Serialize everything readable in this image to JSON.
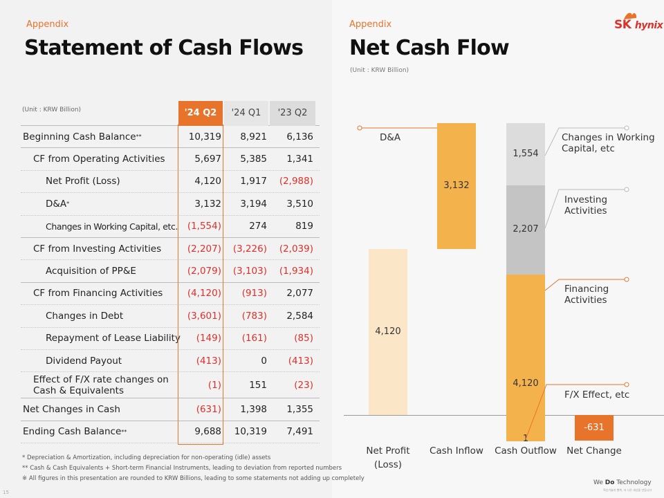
{
  "left": {
    "section": "Appendix",
    "title": "Statement of Cash Flows",
    "table": {
      "unit": "(Unit : KRW Billion)",
      "headers": [
        "'24 Q2",
        "'24 Q1",
        "'23 Q2"
      ],
      "rows": [
        {
          "label": "Beginning Cash Balance",
          "sup": "**",
          "values": [
            "10,319",
            "8,921",
            "6,136"
          ]
        },
        {
          "label": "CF from Operating Activities",
          "values": [
            "5,697",
            "5,385",
            "1,341"
          ]
        },
        {
          "label": "Net Profit (Loss)",
          "values": [
            "4,120",
            "1,917",
            "(2,988)"
          ]
        },
        {
          "label": "D&A",
          "sup": "*",
          "values": [
            "3,132",
            "3,194",
            "3,510"
          ]
        },
        {
          "label": "Changes in Working Capital, etc.",
          "values": [
            "(1,554)",
            "274",
            "819"
          ]
        },
        {
          "label": "CF from Investing Activities",
          "values": [
            "(2,207)",
            "(3,226)",
            "(2,039)"
          ]
        },
        {
          "label": "Acquisition of PP&E",
          "values": [
            "(2,079)",
            "(3,103)",
            "(1,934)"
          ]
        },
        {
          "label": "CF from Financing Activities",
          "values": [
            "(4,120)",
            "(913)",
            "2,077"
          ]
        },
        {
          "label": "Changes in Debt",
          "values": [
            "(3,601)",
            "(783)",
            "2,584"
          ]
        },
        {
          "label": "Repayment of Lease Liability",
          "values": [
            "(149)",
            "(161)",
            "(85)"
          ]
        },
        {
          "label": "Dividend Payout",
          "values": [
            "(413)",
            "0",
            "(413)"
          ]
        },
        {
          "label": "Effect of F/X rate changes on Cash & Equivalents",
          "values": [
            "(1)",
            "151",
            "(23)"
          ]
        },
        {
          "label": "Net Changes in Cash",
          "values": [
            "(631)",
            "1,398",
            "1,355"
          ]
        },
        {
          "label": "Ending Cash Balance",
          "sup": "**",
          "values": [
            "9,688",
            "10,319",
            "7,491"
          ]
        }
      ]
    },
    "notes": [
      "* Depreciation & Amortization, including depreciation for non-operating (idle) assets",
      "** Cash & Cash Equivalents + Short-term Financial Instruments, leading to deviation from reported numbers",
      "※ All figures in this presentation are rounded to KRW Billions, leading to some statements not adding up completely"
    ],
    "page_number": "15"
  },
  "right": {
    "section": "Appendix",
    "title": "Net Cash Flow",
    "unit": "(Unit : KRW Billion)",
    "logo": {
      "sk": "SK",
      "hynix": "hynix"
    },
    "tagline": {
      "pre": "We ",
      "bold": "Do",
      "post": " Technology"
    },
    "tagline_sub": "혁신기술과 행복, 더 나은 세상을 만듭니다"
  },
  "chart_data": {
    "type": "bar",
    "subtype": "waterfall",
    "categories": [
      "Net Profit (Loss)",
      "Cash Inflow",
      "Cash Outflow",
      "Net Change"
    ],
    "stacks": {
      "net_profit": {
        "value": 4120,
        "label": "4,120"
      },
      "cash_inflow": {
        "value": 3132,
        "label": "3,132",
        "name": "D&A"
      },
      "cash_outflow": [
        {
          "name": "F/X Effect, etc",
          "value": 1,
          "label": "1"
        },
        {
          "name": "Financing Activities",
          "value": 4120,
          "label": "4,120"
        },
        {
          "name": "Investing Activities",
          "value": 2207,
          "label": "2,207"
        },
        {
          "name": "Changes in Working Capital, etc",
          "value": 1554,
          "label": "1,554"
        }
      ],
      "net_change": {
        "value": -631,
        "label": "-631"
      }
    },
    "colors": {
      "net_profit": "#fbe6c8",
      "inflow": "#f4b24d",
      "working_capital": "#dcdcdc",
      "investing": "#c4c4c4",
      "financing": "#f4b24d",
      "net_change": "#e8732a",
      "accent": "#e8732a"
    }
  }
}
